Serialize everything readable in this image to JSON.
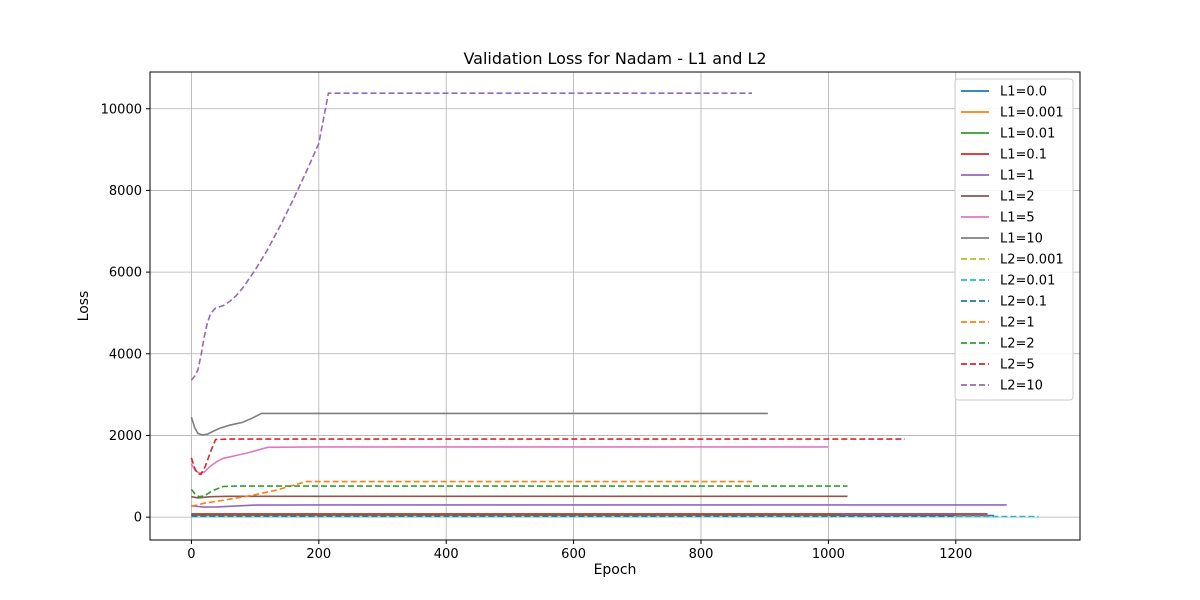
{
  "chart_data": {
    "type": "line",
    "title": "Validation Loss for Nadam - L1 and L2",
    "xlabel": "Epoch",
    "ylabel": "Loss",
    "xlim": [
      -65,
      1395
    ],
    "ylim": [
      -560,
      10900
    ],
    "xticks": [
      0,
      200,
      400,
      600,
      800,
      1000,
      1200
    ],
    "yticks": [
      0,
      2000,
      4000,
      6000,
      8000,
      10000
    ],
    "grid": true,
    "legend_position": "top-right",
    "series": [
      {
        "name": "L1=0.0",
        "color": "#1f77b4",
        "dash": false,
        "points": [
          [
            0,
            40
          ],
          [
            1260,
            40
          ]
        ]
      },
      {
        "name": "L1=0.001",
        "color": "#ff7f0e",
        "dash": false,
        "points": [
          [
            0,
            50
          ],
          [
            1000,
            50
          ]
        ]
      },
      {
        "name": "L1=0.01",
        "color": "#2ca02c",
        "dash": false,
        "points": [
          [
            0,
            60
          ],
          [
            1020,
            60
          ]
        ]
      },
      {
        "name": "L1=0.1",
        "color": "#d62728",
        "dash": false,
        "points": [
          [
            0,
            80
          ],
          [
            1250,
            80
          ]
        ]
      },
      {
        "name": "L1=1",
        "color": "#9467bd",
        "dash": false,
        "points": [
          [
            0,
            280
          ],
          [
            10,
            260
          ],
          [
            20,
            245
          ],
          [
            40,
            250
          ],
          [
            60,
            265
          ],
          [
            100,
            295
          ],
          [
            200,
            300
          ],
          [
            1280,
            300
          ]
        ]
      },
      {
        "name": "L1=2",
        "color": "#8c564b",
        "dash": false,
        "points": [
          [
            0,
            500
          ],
          [
            10,
            470
          ],
          [
            30,
            500
          ],
          [
            60,
            510
          ],
          [
            1030,
            510
          ]
        ]
      },
      {
        "name": "L1=5",
        "color": "#e377c2",
        "dash": false,
        "points": [
          [
            0,
            1300
          ],
          [
            6,
            1150
          ],
          [
            12,
            1080
          ],
          [
            20,
            1100
          ],
          [
            30,
            1250
          ],
          [
            40,
            1360
          ],
          [
            50,
            1440
          ],
          [
            70,
            1510
          ],
          [
            90,
            1580
          ],
          [
            120,
            1710
          ],
          [
            200,
            1720
          ],
          [
            1000,
            1720
          ]
        ]
      },
      {
        "name": "L1=10",
        "color": "#7f7f7f",
        "dash": false,
        "points": [
          [
            0,
            2450
          ],
          [
            5,
            2200
          ],
          [
            10,
            2050
          ],
          [
            18,
            2010
          ],
          [
            25,
            2030
          ],
          [
            35,
            2110
          ],
          [
            45,
            2180
          ],
          [
            60,
            2250
          ],
          [
            80,
            2320
          ],
          [
            95,
            2420
          ],
          [
            110,
            2540
          ],
          [
            200,
            2540
          ],
          [
            905,
            2540
          ]
        ]
      },
      {
        "name": "L2=0.001",
        "color": "#bcbd22",
        "dash": true,
        "points": [
          [
            0,
            20
          ],
          [
            1250,
            20
          ]
        ]
      },
      {
        "name": "L2=0.01",
        "color": "#17becf",
        "dash": true,
        "points": [
          [
            0,
            15
          ],
          [
            1330,
            15
          ]
        ]
      },
      {
        "name": "L2=0.1",
        "color": "#1f77b4",
        "dash": true,
        "points": [
          [
            0,
            25
          ],
          [
            1200,
            25
          ]
        ]
      },
      {
        "name": "L2=1",
        "color": "#ff7f0e",
        "dash": true,
        "points": [
          [
            0,
            270
          ],
          [
            10,
            300
          ],
          [
            20,
            340
          ],
          [
            40,
            390
          ],
          [
            60,
            440
          ],
          [
            80,
            490
          ],
          [
            100,
            550
          ],
          [
            130,
            650
          ],
          [
            160,
            780
          ],
          [
            180,
            870
          ],
          [
            200,
            870
          ],
          [
            880,
            870
          ]
        ]
      },
      {
        "name": "L2=2",
        "color": "#2ca02c",
        "dash": true,
        "points": [
          [
            0,
            680
          ],
          [
            6,
            560
          ],
          [
            12,
            500
          ],
          [
            20,
            520
          ],
          [
            35,
            660
          ],
          [
            50,
            750
          ],
          [
            70,
            760
          ],
          [
            1030,
            760
          ]
        ]
      },
      {
        "name": "L2=5",
        "color": "#d62728",
        "dash": true,
        "points": [
          [
            0,
            1450
          ],
          [
            5,
            1200
          ],
          [
            10,
            1060
          ],
          [
            15,
            1050
          ],
          [
            22,
            1250
          ],
          [
            30,
            1600
          ],
          [
            38,
            1900
          ],
          [
            60,
            1910
          ],
          [
            1120,
            1910
          ]
        ]
      },
      {
        "name": "L2=10",
        "color": "#9467bd",
        "dash": true,
        "points": [
          [
            0,
            3350
          ],
          [
            5,
            3450
          ],
          [
            10,
            3600
          ],
          [
            15,
            3950
          ],
          [
            20,
            4400
          ],
          [
            25,
            4750
          ],
          [
            30,
            4980
          ],
          [
            38,
            5120
          ],
          [
            50,
            5180
          ],
          [
            60,
            5280
          ],
          [
            70,
            5420
          ],
          [
            80,
            5600
          ],
          [
            100,
            6050
          ],
          [
            120,
            6560
          ],
          [
            140,
            7150
          ],
          [
            160,
            7780
          ],
          [
            180,
            8450
          ],
          [
            200,
            9150
          ],
          [
            215,
            10380
          ],
          [
            300,
            10380
          ],
          [
            880,
            10380
          ]
        ]
      }
    ]
  }
}
